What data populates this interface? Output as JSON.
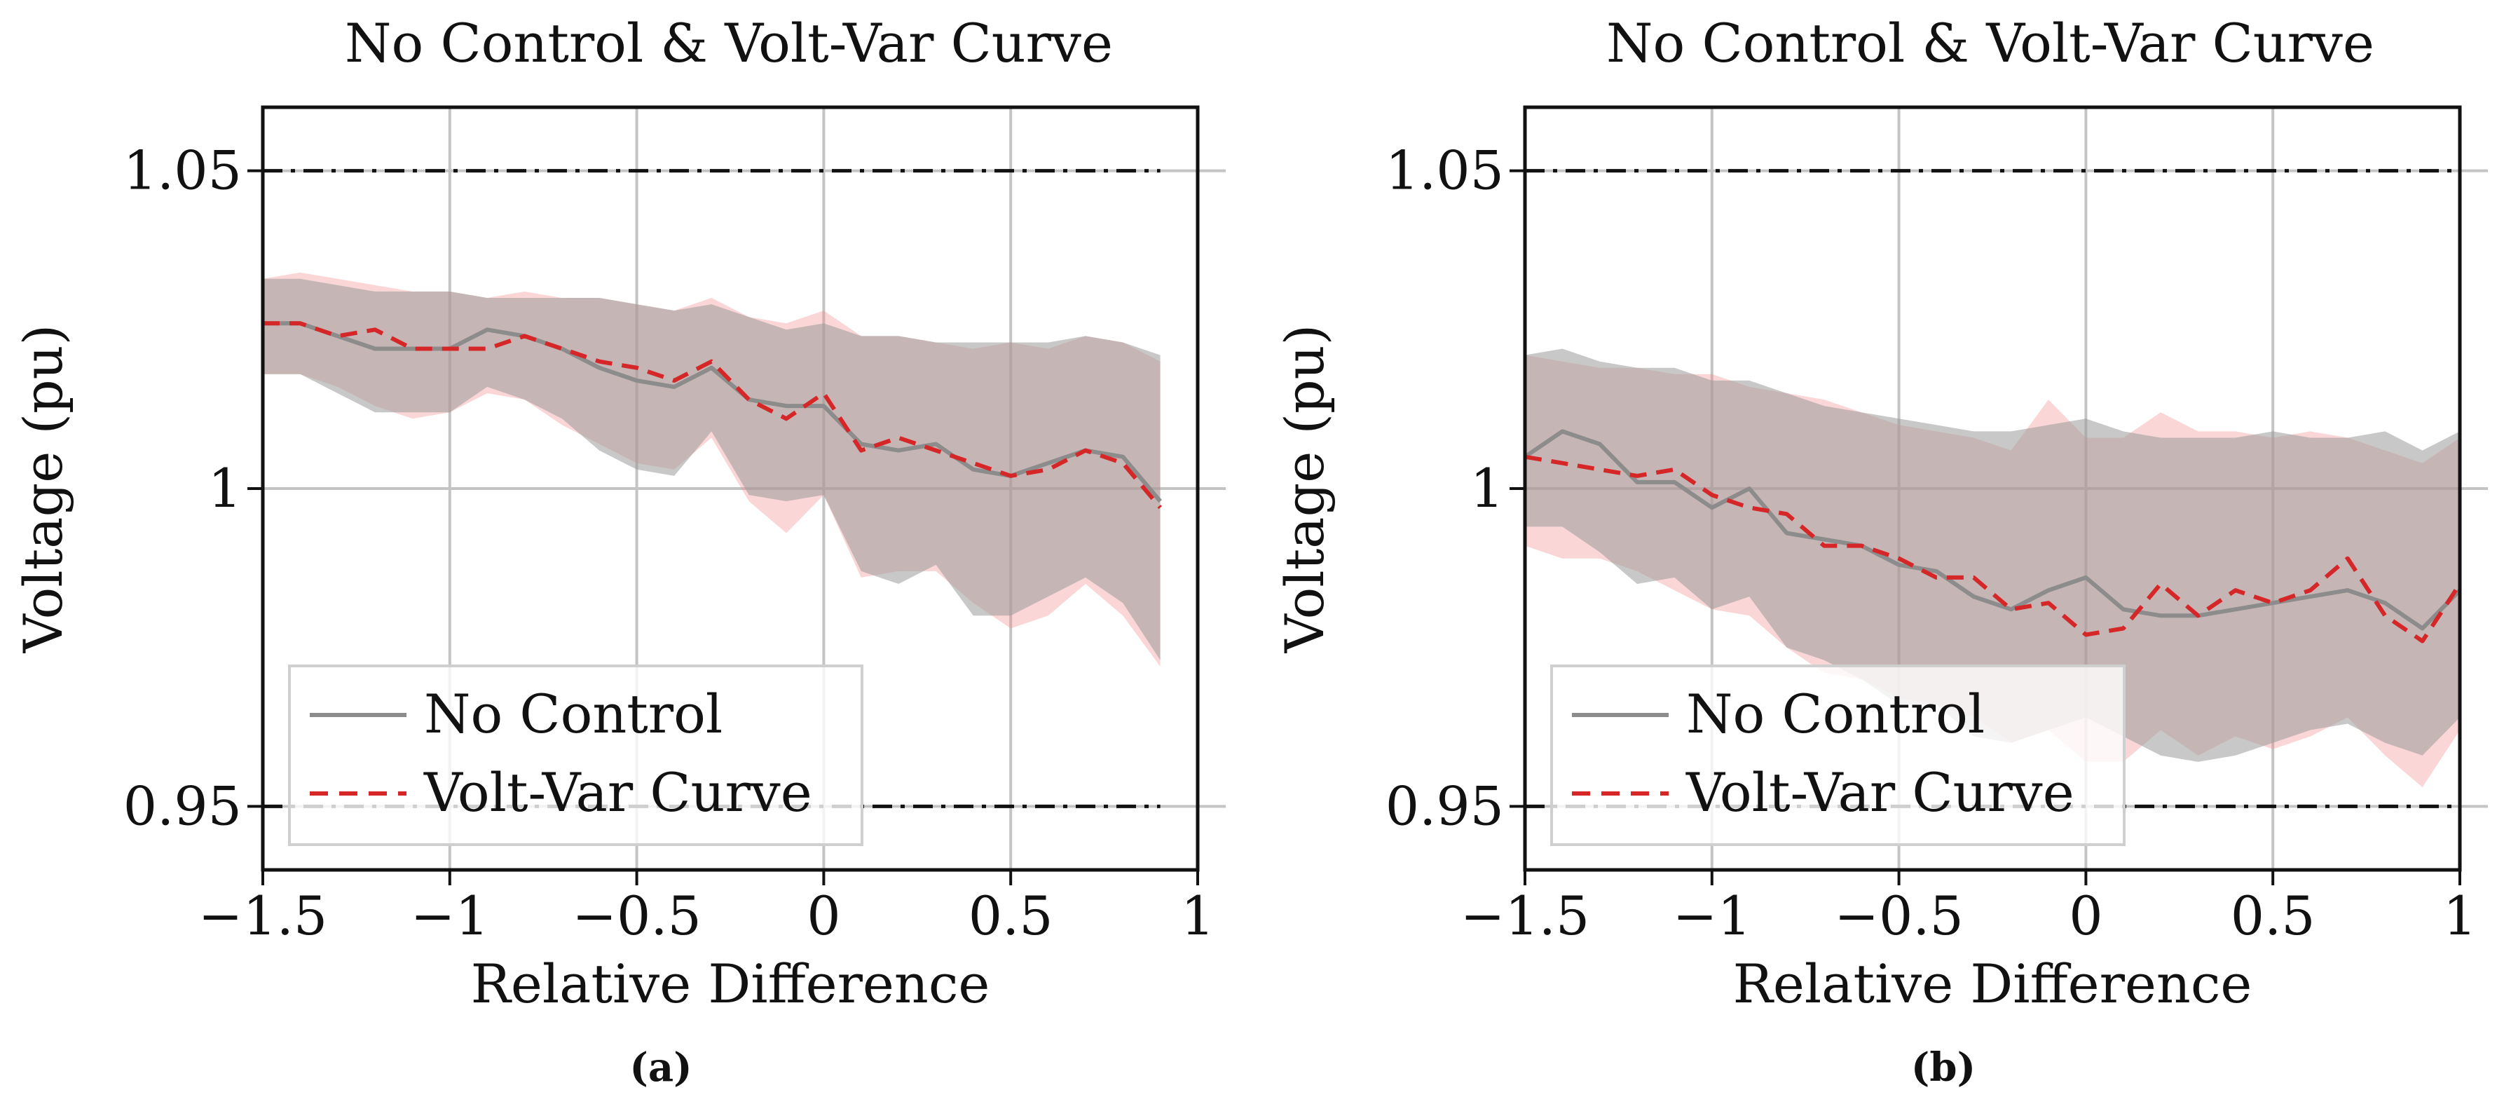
{
  "chart_data": [
    {
      "type": "line",
      "panel": "(a)",
      "title": "No Control & Volt-Var Curve",
      "xlabel": "Relative Difference",
      "ylabel": "Voltage (pu)",
      "xlim": [
        -1.5,
        1
      ],
      "ylim": [
        0.94,
        1.06
      ],
      "xticks": [
        -1.5,
        -1,
        -0.5,
        0,
        0.5,
        1
      ],
      "xtick_labels": [
        "−1.5",
        "−1",
        "−0.5",
        "0",
        "0.5",
        "1"
      ],
      "yticks": [
        0.95,
        1,
        1.05
      ],
      "ytick_labels": [
        "0.95",
        "1",
        "1.05"
      ],
      "grid": true,
      "reference_lines": [
        0.95,
        1.05
      ],
      "legend": {
        "position": "bottom-left",
        "entries": [
          "No Control",
          "Volt-Var Curve"
        ]
      },
      "x": [
        -1.5,
        -1.4,
        -1.3,
        -1.2,
        -1.1,
        -1.0,
        -0.9,
        -0.8,
        -0.7,
        -0.6,
        -0.5,
        -0.4,
        -0.3,
        -0.2,
        -0.1,
        0.0,
        0.1,
        0.2,
        0.3,
        0.4,
        0.5,
        0.6,
        0.7,
        0.8,
        0.9
      ],
      "series": [
        {
          "name": "No Control",
          "color": "#8c8c8c",
          "style": "solid",
          "values": [
            1.026,
            1.026,
            1.024,
            1.022,
            1.022,
            1.022,
            1.025,
            1.024,
            1.022,
            1.019,
            1.017,
            1.016,
            1.019,
            1.014,
            1.013,
            1.013,
            1.007,
            1.006,
            1.007,
            1.003,
            1.002,
            1.004,
            1.006,
            1.005,
            0.998
          ],
          "upper": [
            1.033,
            1.033,
            1.032,
            1.031,
            1.031,
            1.031,
            1.03,
            1.03,
            1.03,
            1.03,
            1.029,
            1.028,
            1.029,
            1.027,
            1.025,
            1.026,
            1.024,
            1.024,
            1.023,
            1.023,
            1.023,
            1.023,
            1.024,
            1.023,
            1.021
          ],
          "lower": [
            1.018,
            1.018,
            1.015,
            1.012,
            1.012,
            1.012,
            1.016,
            1.014,
            1.011,
            1.006,
            1.003,
            1.002,
            1.009,
            0.999,
            0.998,
            0.999,
            0.987,
            0.985,
            0.988,
            0.98,
            0.98,
            0.983,
            0.986,
            0.982,
            0.973
          ]
        },
        {
          "name": "Volt-Var Curve",
          "color": "#d62728",
          "style": "dashed",
          "values": [
            1.026,
            1.026,
            1.024,
            1.025,
            1.022,
            1.022,
            1.022,
            1.024,
            1.022,
            1.02,
            1.019,
            1.017,
            1.02,
            1.014,
            1.011,
            1.015,
            1.006,
            1.008,
            1.006,
            1.004,
            1.002,
            1.003,
            1.006,
            1.004,
            0.997
          ],
          "upper": [
            1.033,
            1.034,
            1.033,
            1.032,
            1.031,
            1.031,
            1.03,
            1.031,
            1.03,
            1.03,
            1.029,
            1.028,
            1.03,
            1.027,
            1.026,
            1.028,
            1.024,
            1.024,
            1.023,
            1.022,
            1.023,
            1.022,
            1.024,
            1.023,
            1.02
          ],
          "lower": [
            1.018,
            1.018,
            1.016,
            1.013,
            1.011,
            1.012,
            1.015,
            1.014,
            1.01,
            1.007,
            1.004,
            1.003,
            1.008,
            0.998,
            0.993,
            0.999,
            0.986,
            0.987,
            0.987,
            0.982,
            0.978,
            0.98,
            0.985,
            0.98,
            0.972
          ]
        }
      ]
    },
    {
      "type": "line",
      "panel": "(b)",
      "title": "No Control & Volt-Var Curve",
      "xlabel": "Relative Difference",
      "ylabel": "Voltage (pu)",
      "xlim": [
        -1.5,
        1
      ],
      "ylim": [
        0.94,
        1.06
      ],
      "xticks": [
        -1.5,
        -1,
        -0.5,
        0,
        0.5,
        1
      ],
      "xtick_labels": [
        "−1.5",
        "−1",
        "−0.5",
        "0",
        "0.5",
        "1"
      ],
      "yticks": [
        0.95,
        1,
        1.05
      ],
      "ytick_labels": [
        "0.95",
        "1",
        "1.05"
      ],
      "grid": true,
      "reference_lines": [
        0.95,
        1.05
      ],
      "legend": {
        "position": "bottom-left",
        "entries": [
          "No Control",
          "Volt-Var Curve"
        ]
      },
      "x": [
        -1.5,
        -1.4,
        -1.3,
        -1.2,
        -1.1,
        -1.0,
        -0.9,
        -0.8,
        -0.7,
        -0.6,
        -0.5,
        -0.4,
        -0.3,
        -0.2,
        -0.1,
        0.0,
        0.1,
        0.2,
        0.3,
        0.4,
        0.5,
        0.6,
        0.7,
        0.8,
        0.9,
        1.0
      ],
      "series": [
        {
          "name": "No Control",
          "color": "#8c8c8c",
          "style": "solid",
          "values": [
            1.005,
            1.009,
            1.007,
            1.001,
            1.001,
            0.997,
            1.0,
            0.993,
            0.992,
            0.991,
            0.988,
            0.987,
            0.983,
            0.981,
            0.984,
            0.986,
            0.981,
            0.98,
            0.98,
            0.981,
            0.982,
            0.983,
            0.984,
            0.982,
            0.978,
            0.984
          ],
          "upper": [
            1.021,
            1.022,
            1.02,
            1.019,
            1.019,
            1.017,
            1.017,
            1.015,
            1.013,
            1.012,
            1.011,
            1.01,
            1.009,
            1.009,
            1.01,
            1.011,
            1.009,
            1.008,
            1.008,
            1.008,
            1.009,
            1.008,
            1.008,
            1.009,
            1.006,
            1.009
          ],
          "lower": [
            0.994,
            0.994,
            0.99,
            0.985,
            0.986,
            0.981,
            0.983,
            0.975,
            0.973,
            0.97,
            0.966,
            0.966,
            0.961,
            0.96,
            0.962,
            0.964,
            0.961,
            0.958,
            0.957,
            0.958,
            0.96,
            0.962,
            0.963,
            0.96,
            0.958,
            0.964
          ]
        },
        {
          "name": "Volt-Var Curve",
          "color": "#d62728",
          "style": "dashed",
          "values": [
            1.005,
            1.004,
            1.003,
            1.002,
            1.003,
            0.999,
            0.997,
            0.996,
            0.991,
            0.991,
            0.989,
            0.986,
            0.986,
            0.981,
            0.982,
            0.977,
            0.978,
            0.985,
            0.98,
            0.984,
            0.982,
            0.984,
            0.989,
            0.98,
            0.976,
            0.985
          ],
          "upper": [
            1.021,
            1.02,
            1.019,
            1.019,
            1.018,
            1.018,
            1.016,
            1.015,
            1.014,
            1.012,
            1.01,
            1.009,
            1.008,
            1.006,
            1.014,
            1.008,
            1.008,
            1.012,
            1.009,
            1.009,
            1.008,
            1.009,
            1.008,
            1.006,
            1.004,
            1.008
          ],
          "lower": [
            0.991,
            0.989,
            0.989,
            0.987,
            0.984,
            0.981,
            0.98,
            0.975,
            0.971,
            0.97,
            0.967,
            0.966,
            0.964,
            0.96,
            0.962,
            0.957,
            0.957,
            0.962,
            0.958,
            0.961,
            0.959,
            0.961,
            0.964,
            0.958,
            0.953,
            0.962
          ]
        }
      ]
    }
  ]
}
